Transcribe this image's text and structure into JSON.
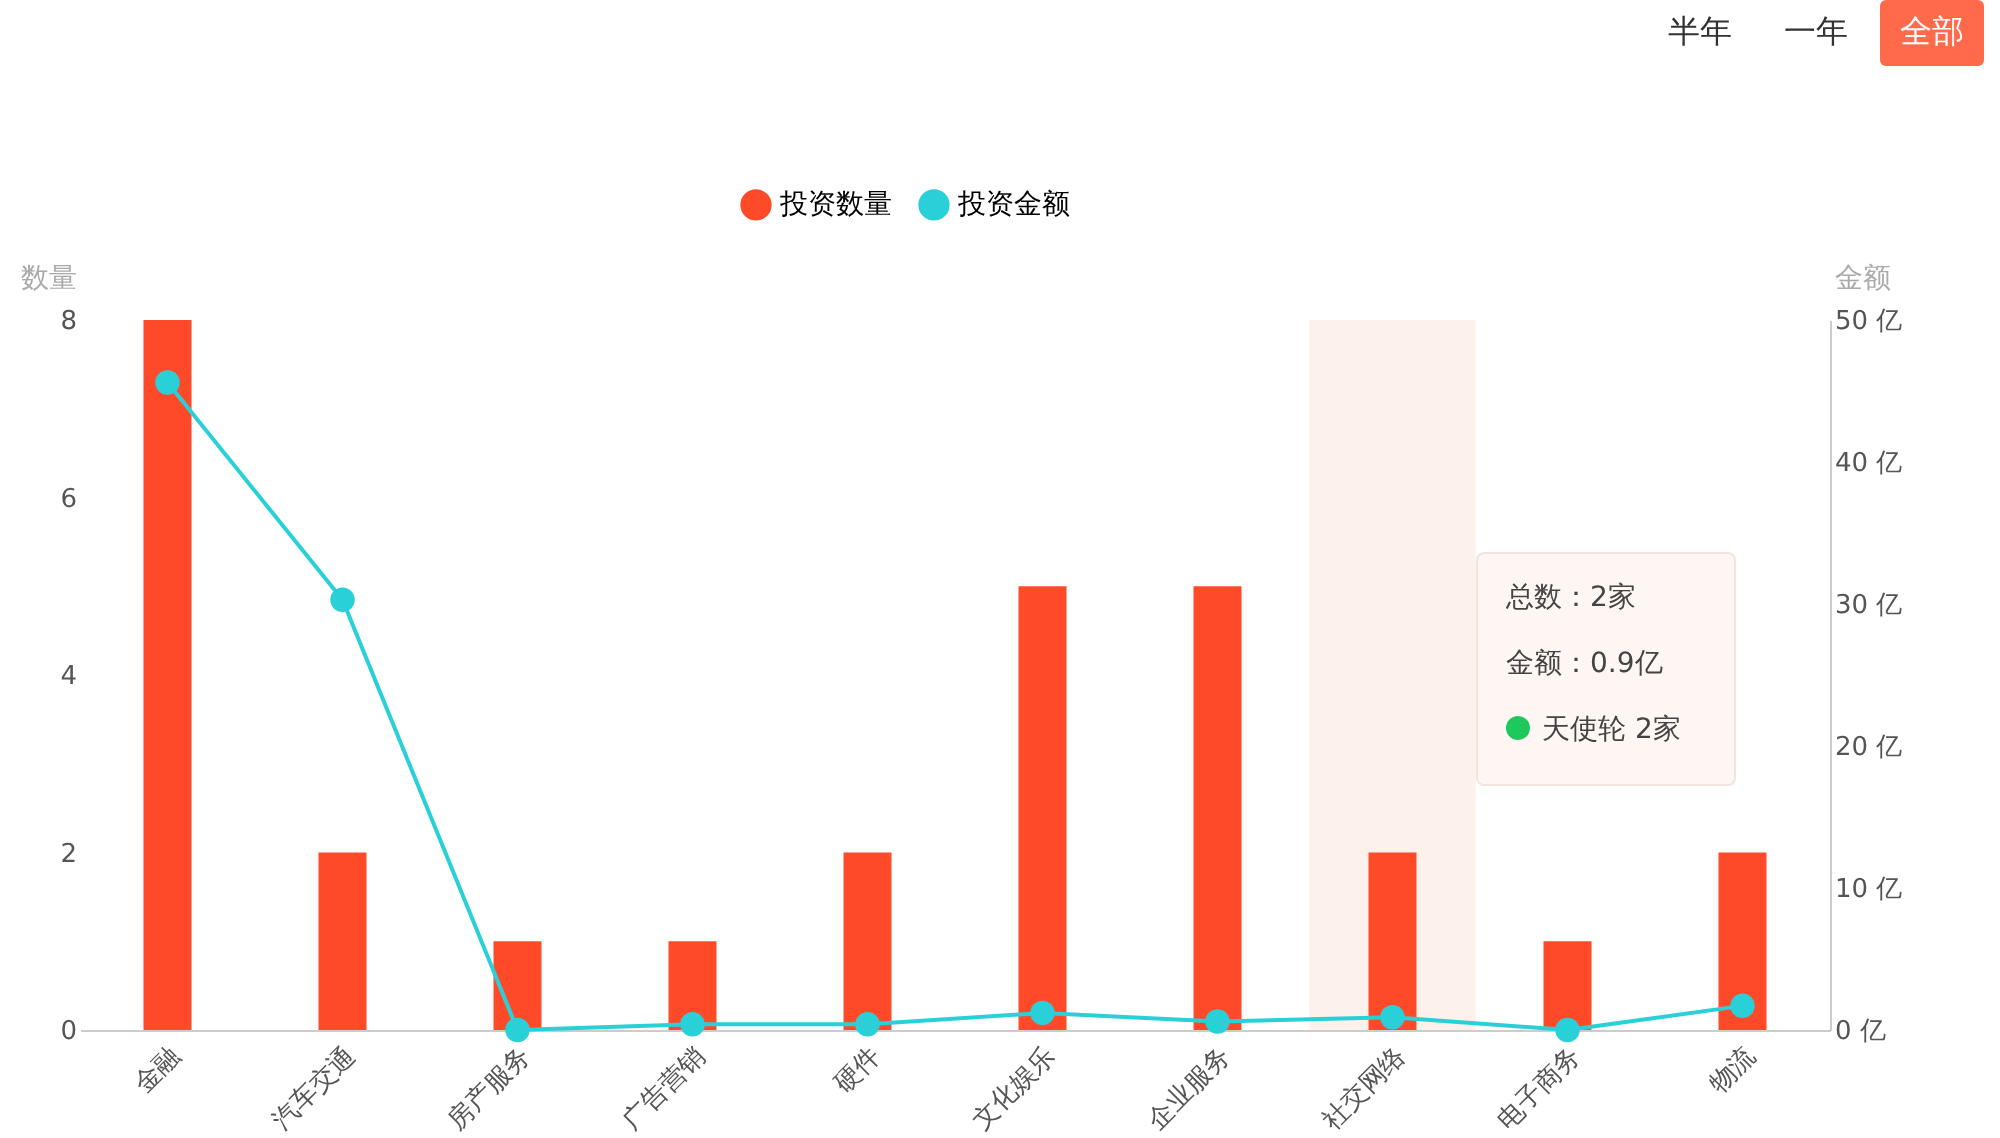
{
  "chart_data": {
    "type": "bar",
    "ylabel": "数量",
    "y2label": "金额",
    "categories": [
      "金融",
      "汽车交通",
      "房产服务",
      "广告营销",
      "硬件",
      "文化娱乐",
      "企业服务",
      "社交网络",
      "电子商务",
      "物流"
    ],
    "series": [
      {
        "name": "投资数量",
        "color": "#ff4a2a",
        "values": [
          8,
          2,
          1,
          1,
          2,
          5,
          5,
          2,
          1,
          2
        ]
      },
      {
        "name": "投资金额",
        "type": "line",
        "axis": "y2",
        "color": "#2ad0d8",
        "values": [
          45.6,
          30.3,
          0,
          0.4,
          0.4,
          1.2,
          0.6,
          0.9,
          0,
          1.7
        ]
      }
    ],
    "ylim": [
      0,
      8
    ],
    "yticks": [
      0,
      2,
      4,
      6,
      8
    ],
    "y2lim": [
      0,
      50
    ],
    "y2ticks": [
      {
        "value": 0,
        "label": "0 亿"
      },
      {
        "value": 10,
        "label": "10 亿"
      },
      {
        "value": 20,
        "label": "20 亿"
      },
      {
        "value": 30,
        "label": "30 亿"
      },
      {
        "value": 40,
        "label": "40 亿"
      },
      {
        "value": 50,
        "label": "50 亿"
      }
    ],
    "bands": [
      {
        "axis": "x",
        "from": "社交网络",
        "to": "社交网络",
        "color": "#fdf1ec"
      }
    ],
    "legend": "top",
    "marker": "circle",
    "grid": false,
    "annotations": [
      "半年",
      "一年",
      "全部",
      "总数：2家",
      "金额：0.9亿",
      "天使轮 2家"
    ]
  }
}
